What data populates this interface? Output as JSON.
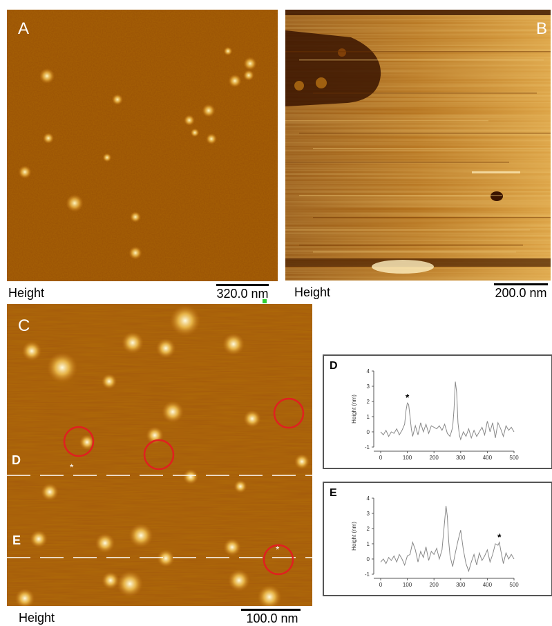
{
  "panels": {
    "A": {
      "letter": "A",
      "caption": "Height",
      "scale_label": "320.0 nm"
    },
    "B": {
      "letter": "B",
      "caption": "Height",
      "scale_label": "200.0 nm"
    },
    "C": {
      "letter": "C",
      "caption": "Height",
      "scale_label": "100.0 nm",
      "line_labels": [
        "D",
        "E"
      ],
      "asterisk": "*"
    }
  },
  "colors": {
    "afm_dark": "#5a2a00",
    "afm_mid": "#a05a0a",
    "afm_light": "#e0b040",
    "circle": "#e02020",
    "trace": "#888888"
  },
  "chart_data": [
    {
      "type": "line",
      "panel": "D",
      "ylabel": "Height (nm)",
      "xlim": [
        0,
        500
      ],
      "ylim": [
        -1,
        4
      ],
      "xticks": [
        0,
        100,
        200,
        300,
        400,
        500
      ],
      "yticks": [
        -1,
        0,
        1,
        2,
        3,
        4
      ],
      "annotation": "*",
      "annotation_x": 100,
      "series": [
        {
          "x": [
            0,
            10,
            20,
            30,
            40,
            50,
            60,
            70,
            80,
            90,
            95,
            100,
            105,
            110,
            115,
            120,
            130,
            140,
            150,
            160,
            170,
            180,
            190,
            200,
            210,
            220,
            230,
            240,
            250,
            260,
            270,
            275,
            280,
            285,
            290,
            295,
            300,
            310,
            320,
            330,
            340,
            350,
            360,
            370,
            380,
            390,
            400,
            405,
            410,
            420,
            430,
            440,
            450,
            460,
            470,
            480,
            490,
            500
          ],
          "y": [
            0.0,
            -0.2,
            0.1,
            -0.3,
            0.0,
            -0.1,
            0.2,
            -0.2,
            0.1,
            0.5,
            1.4,
            1.9,
            1.8,
            1.0,
            0.2,
            -0.3,
            0.4,
            -0.2,
            0.6,
            0.0,
            0.5,
            -0.1,
            0.4,
            0.3,
            0.2,
            0.4,
            0.1,
            0.5,
            -0.1,
            -0.3,
            0.3,
            1.5,
            3.3,
            2.6,
            0.6,
            -0.2,
            -0.5,
            0.0,
            -0.3,
            0.2,
            -0.4,
            0.1,
            -0.3,
            0.0,
            0.3,
            -0.2,
            0.7,
            0.4,
            0.0,
            0.6,
            -0.4,
            0.6,
            0.2,
            -0.3,
            0.4,
            0.1,
            0.3,
            0.0
          ]
        }
      ]
    },
    {
      "type": "line",
      "panel": "E",
      "ylabel": "Height (nm)",
      "xlim": [
        0,
        500
      ],
      "ylim": [
        -1,
        4
      ],
      "xticks": [
        0,
        100,
        200,
        300,
        400,
        500
      ],
      "yticks": [
        -1,
        0,
        1,
        2,
        3,
        4
      ],
      "annotation": "*",
      "annotation_x": 445,
      "series": [
        {
          "x": [
            0,
            10,
            20,
            30,
            40,
            50,
            60,
            70,
            80,
            90,
            100,
            110,
            120,
            130,
            140,
            150,
            160,
            170,
            180,
            190,
            200,
            210,
            220,
            230,
            240,
            245,
            250,
            255,
            260,
            270,
            280,
            290,
            300,
            310,
            320,
            330,
            340,
            350,
            360,
            370,
            380,
            390,
            400,
            410,
            420,
            430,
            440,
            445,
            450,
            460,
            470,
            480,
            490,
            500
          ],
          "y": [
            -0.2,
            0.0,
            -0.3,
            0.1,
            -0.1,
            0.2,
            -0.2,
            0.3,
            0.0,
            -0.4,
            0.2,
            0.3,
            1.1,
            0.6,
            -0.2,
            0.5,
            0.1,
            0.8,
            -0.1,
            0.5,
            0.3,
            0.7,
            0.0,
            0.6,
            2.5,
            3.5,
            2.8,
            1.2,
            0.2,
            -0.5,
            0.4,
            1.2,
            1.9,
            0.6,
            -0.3,
            -0.8,
            -0.2,
            0.3,
            -0.4,
            0.4,
            -0.1,
            0.2,
            0.6,
            -0.2,
            0.3,
            1.0,
            0.9,
            1.1,
            0.6,
            -0.3,
            0.4,
            0.0,
            0.3,
            0.0
          ]
        }
      ]
    }
  ]
}
